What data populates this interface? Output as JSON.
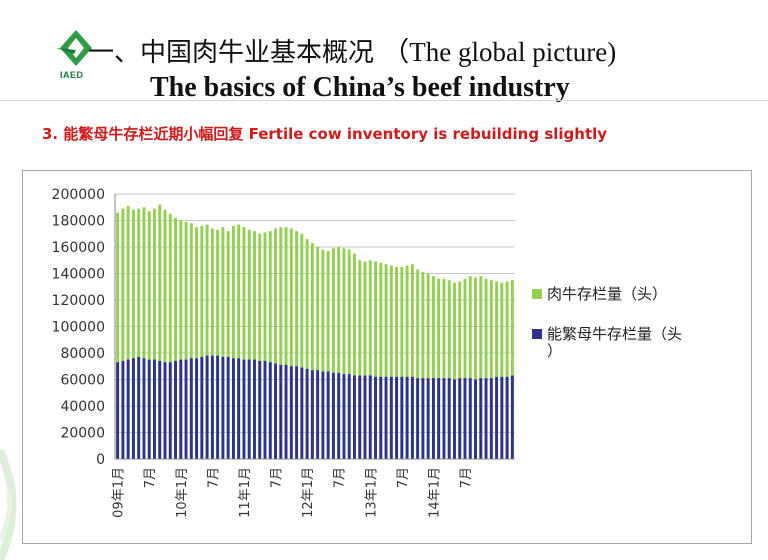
{
  "header": {
    "logo_text": "IAED",
    "title_cn": "一、中国肉牛业基本概况",
    "title_en": "（The global picture)",
    "title_line2": "The basics of China’s beef industry",
    "subtitle": "3. 能繁母牛存栏近期小幅回复  Fertile cow inventory is rebuilding slightly"
  },
  "colors": {
    "cattle_series": "#92d050",
    "cow_series": "#2e3192",
    "subtitle_red": "#d11a1a"
  },
  "chart_data": {
    "type": "bar",
    "ylim": [
      0,
      200000
    ],
    "yticks": [
      "0",
      "20000",
      "40000",
      "60000",
      "80000",
      "100000",
      "120000",
      "140000",
      "160000",
      "180000",
      "200000"
    ],
    "grid": true,
    "legend_position": "right",
    "x_tick_labels": [
      {
        "index": 0,
        "label": "09年1月"
      },
      {
        "index": 6,
        "label": "7月"
      },
      {
        "index": 12,
        "label": "10年1月"
      },
      {
        "index": 18,
        "label": "7月"
      },
      {
        "index": 24,
        "label": "11年1月"
      },
      {
        "index": 30,
        "label": "7月"
      },
      {
        "index": 36,
        "label": "12年1月"
      },
      {
        "index": 42,
        "label": "7月"
      },
      {
        "index": 48,
        "label": "13年1月"
      },
      {
        "index": 54,
        "label": "7月"
      },
      {
        "index": 60,
        "label": "14年1月"
      },
      {
        "index": 66,
        "label": "7月"
      }
    ],
    "series": [
      {
        "name": "肉牛存栏量（头）",
        "values": [
          186000,
          189000,
          191000,
          188000,
          189000,
          190000,
          187000,
          189000,
          192000,
          188000,
          185000,
          182000,
          180000,
          179000,
          178000,
          175000,
          176000,
          177000,
          174000,
          173000,
          175000,
          172000,
          176000,
          177000,
          175000,
          173000,
          172000,
          170000,
          171000,
          172000,
          174000,
          175000,
          175000,
          174000,
          172000,
          170000,
          166000,
          163000,
          160000,
          158000,
          157000,
          159000,
          160000,
          159000,
          158000,
          155000,
          150000,
          149000,
          150000,
          149000,
          148000,
          147000,
          146000,
          145000,
          145000,
          146000,
          147000,
          143000,
          141000,
          140000,
          138000,
          136000,
          136000,
          135000,
          133000,
          134000,
          136000,
          138000,
          137000,
          138000,
          136000,
          135000,
          134000,
          133000,
          134000,
          135000
        ]
      },
      {
        "name": "能繁母牛存栏量（头）",
        "values": [
          73000,
          74000,
          75000,
          76000,
          77000,
          76000,
          75000,
          75000,
          74000,
          73000,
          73000,
          74000,
          75000,
          75000,
          76000,
          76000,
          77000,
          78000,
          78000,
          78000,
          77000,
          77000,
          76000,
          76000,
          75000,
          75000,
          75000,
          74000,
          74000,
          73000,
          72000,
          71000,
          71000,
          70000,
          70000,
          69000,
          68000,
          67000,
          67000,
          66000,
          66000,
          65000,
          65000,
          64000,
          64000,
          63000,
          63000,
          63000,
          63000,
          62000,
          62000,
          62000,
          62000,
          62000,
          62000,
          62000,
          62000,
          61000,
          61000,
          61000,
          61000,
          61000,
          61000,
          61000,
          60000,
          61000,
          61000,
          61000,
          60000,
          61000,
          61000,
          61000,
          62000,
          62000,
          62000,
          63000
        ]
      }
    ]
  }
}
